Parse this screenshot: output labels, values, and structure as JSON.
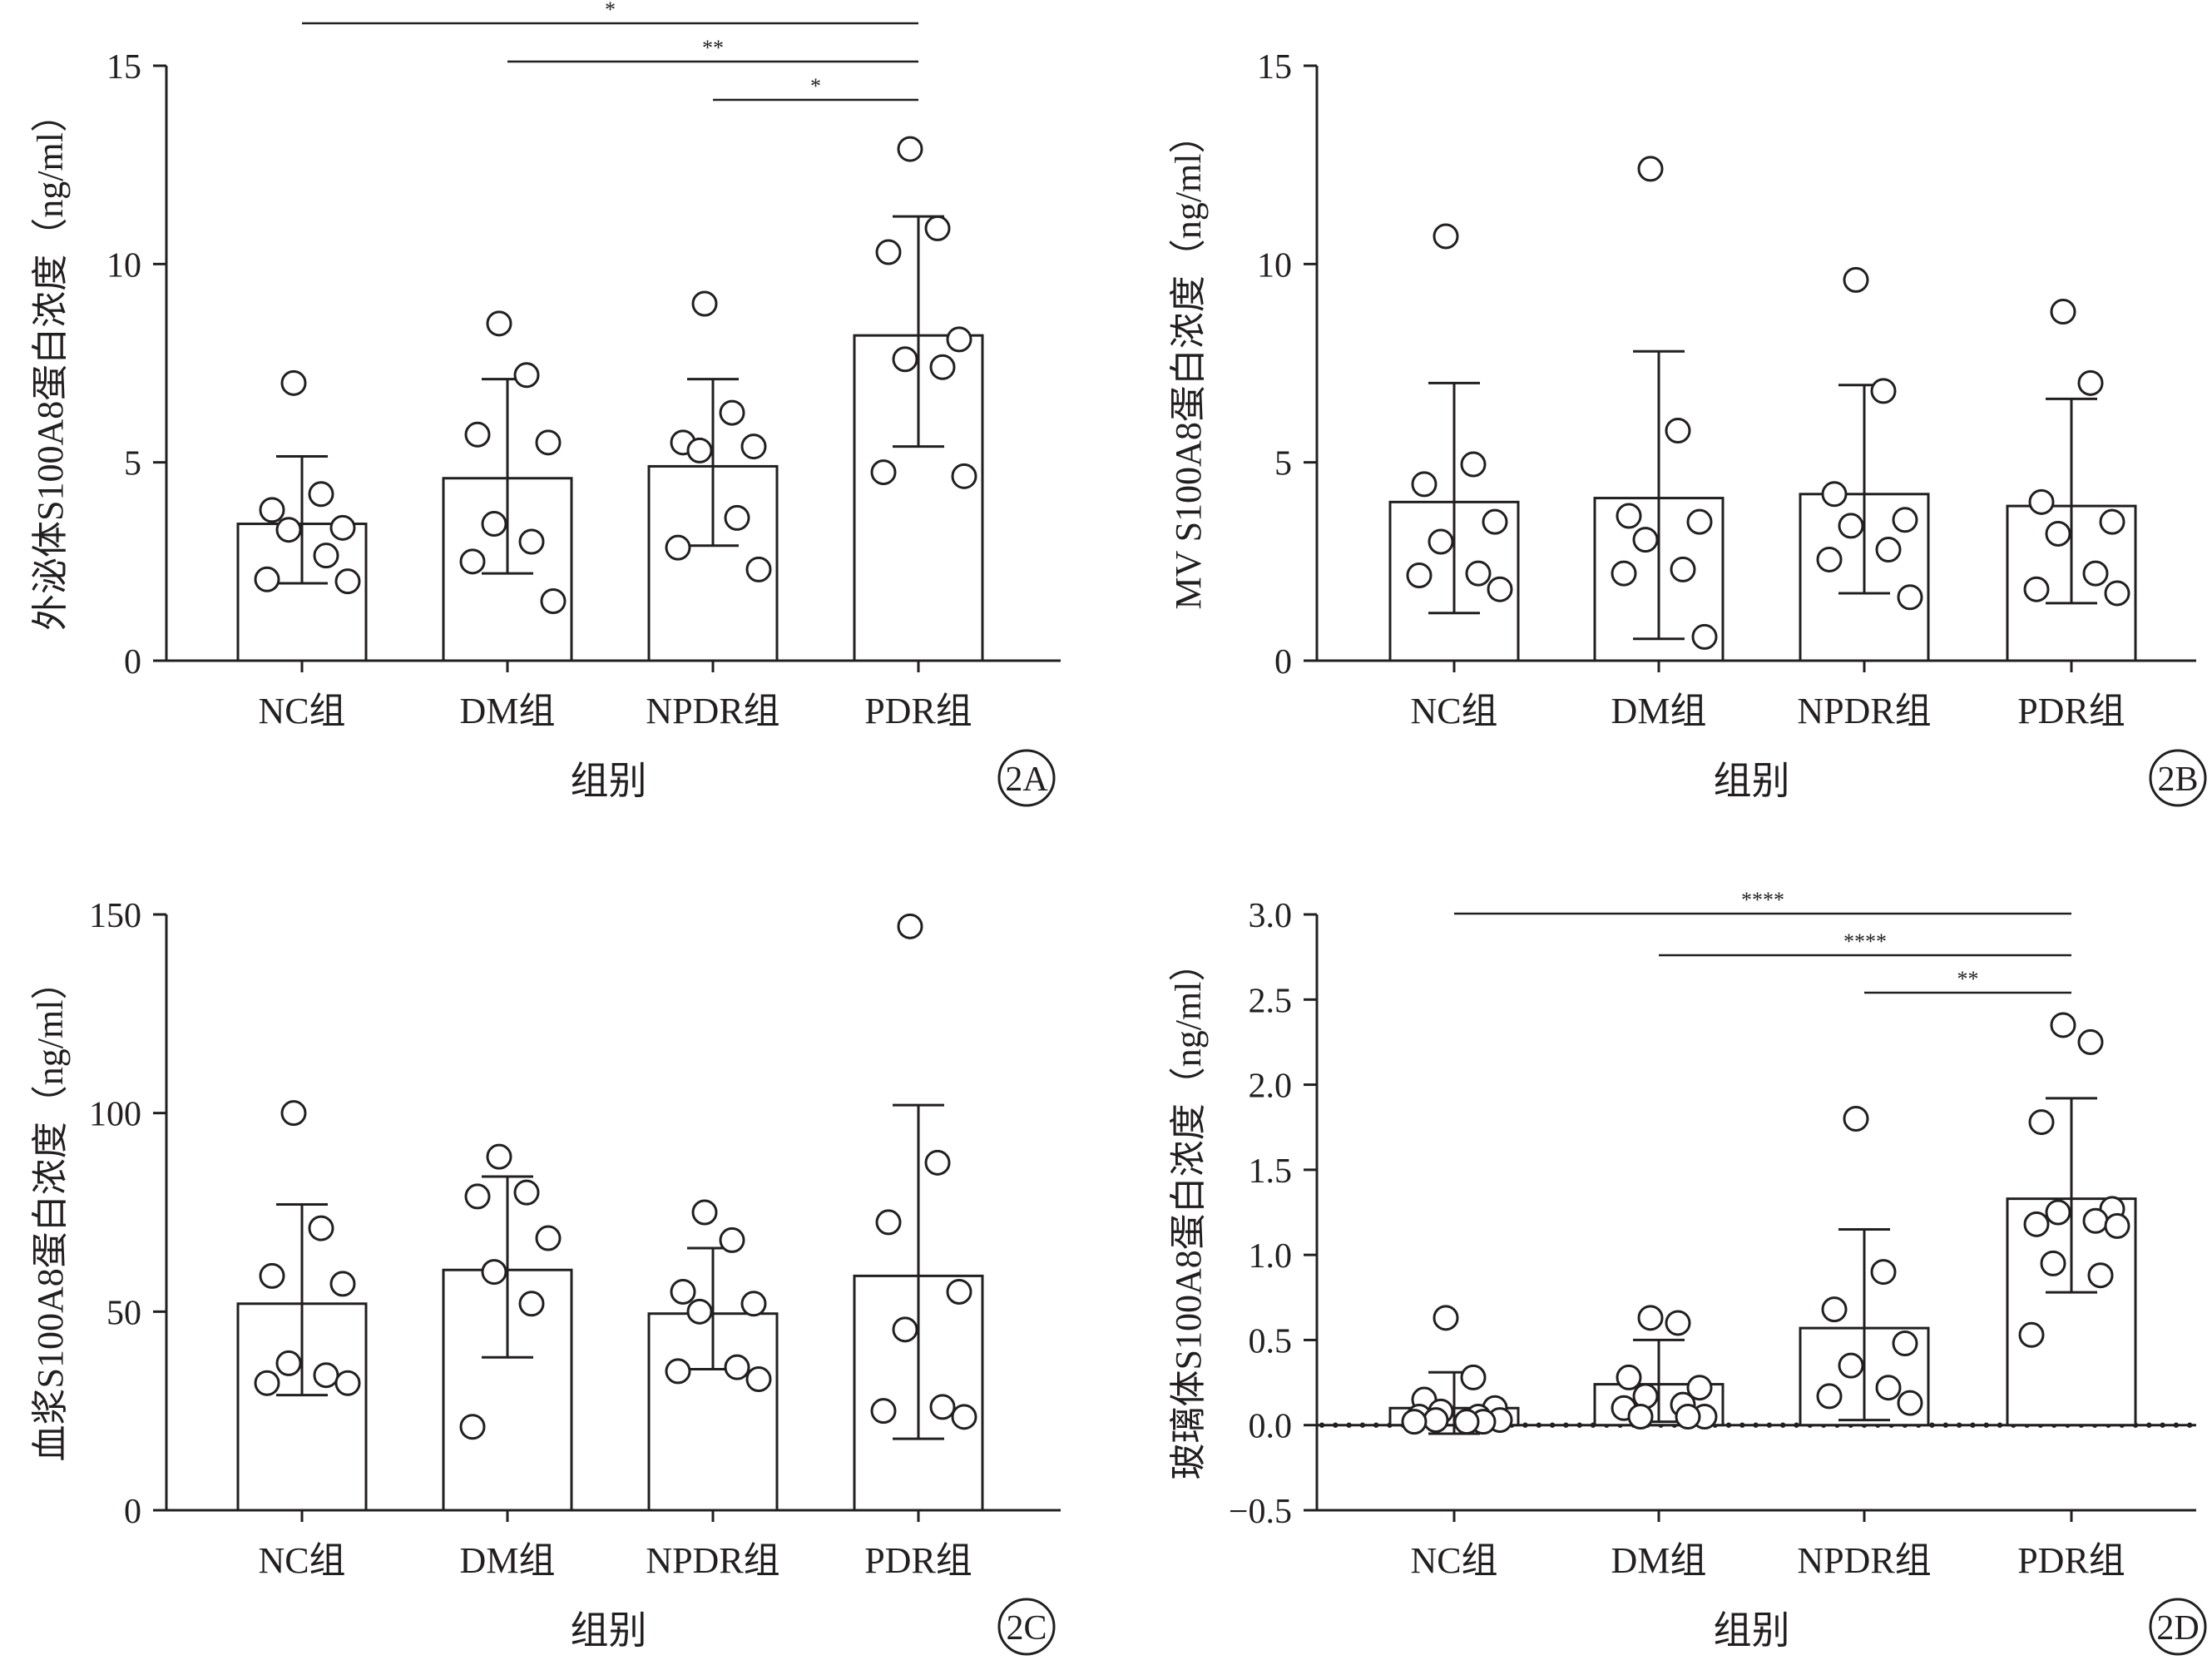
{
  "chart_data": [
    {
      "type": "bar",
      "panel_label": "2A",
      "categories": [
        "NC组",
        "DM组",
        "NPDR组",
        "PDR组"
      ],
      "ylabel": "外泌体S100A8蛋白浓度（ng/ml）",
      "xlabel": "组别",
      "ylim": [
        0,
        15
      ],
      "yticks": [
        0,
        5,
        10,
        15
      ],
      "ytick_labels": [
        "0",
        "5",
        "10",
        "15"
      ],
      "means": [
        3.45,
        4.6,
        4.9,
        8.2
      ],
      "sd_low": [
        1.95,
        2.2,
        2.9,
        5.4
      ],
      "sd_high": [
        5.15,
        7.1,
        7.1,
        11.2
      ],
      "points": [
        [
          7.0,
          4.2,
          3.8,
          3.35,
          3.3,
          2.65,
          2.05,
          2.0
        ],
        [
          8.5,
          7.2,
          5.7,
          5.5,
          3.45,
          3.0,
          2.5,
          1.5
        ],
        [
          9.0,
          6.25,
          5.5,
          5.4,
          5.3,
          3.6,
          2.85,
          2.3
        ],
        [
          12.9,
          10.9,
          10.3,
          8.1,
          7.6,
          7.4,
          4.75,
          4.65
        ]
      ],
      "significance": [
        {
          "from": "NC组",
          "to": "PDR组",
          "label": "*"
        },
        {
          "from": "DM组",
          "to": "PDR组",
          "label": "**"
        },
        {
          "from": "NPDR组",
          "to": "PDR组",
          "label": "*"
        }
      ],
      "dotted_zero_line": false
    },
    {
      "type": "bar",
      "panel_label": "2B",
      "categories": [
        "NC组",
        "DM组",
        "NPDR组",
        "PDR组"
      ],
      "ylabel": "MV S100A8蛋白浓度（ng/ml）",
      "xlabel": "组别",
      "ylim": [
        0,
        15
      ],
      "yticks": [
        0,
        5,
        10,
        15
      ],
      "ytick_labels": [
        "0",
        "5",
        "10",
        "15"
      ],
      "means": [
        4.0,
        4.1,
        4.2,
        3.9
      ],
      "sd_low": [
        1.2,
        0.55,
        1.7,
        1.45
      ],
      "sd_high": [
        7.0,
        7.8,
        6.95,
        6.6
      ],
      "points": [
        [
          10.7,
          4.95,
          4.45,
          3.5,
          3.0,
          2.2,
          2.15,
          1.8
        ],
        [
          12.4,
          5.8,
          3.65,
          3.5,
          3.05,
          2.3,
          2.2,
          0.6
        ],
        [
          9.6,
          6.8,
          4.2,
          3.55,
          3.4,
          2.8,
          2.55,
          1.6
        ],
        [
          8.8,
          7.0,
          4.0,
          3.5,
          3.2,
          2.2,
          1.8,
          1.7
        ]
      ],
      "significance": [],
      "dotted_zero_line": false
    },
    {
      "type": "bar",
      "panel_label": "2C",
      "categories": [
        "NC组",
        "DM组",
        "NPDR组",
        "PDR组"
      ],
      "ylabel": "血浆S100A8蛋白浓度（ng/ml）",
      "xlabel": "组别",
      "ylim": [
        0,
        150
      ],
      "yticks": [
        0,
        50,
        100,
        150
      ],
      "ytick_labels": [
        "0",
        "50",
        "100",
        "150"
      ],
      "means": [
        52,
        60.5,
        49.5,
        59
      ],
      "sd_low": [
        29,
        38.5,
        35.5,
        18
      ],
      "sd_high": [
        77,
        84,
        66,
        102
      ],
      "points": [
        [
          100,
          71,
          59,
          57,
          37,
          34,
          32,
          32
        ],
        [
          89,
          80,
          79,
          68.5,
          60,
          52,
          21
        ],
        [
          75,
          68,
          55,
          52,
          50,
          36,
          35,
          33
        ],
        [
          147,
          87.5,
          72.5,
          55,
          45.5,
          26,
          25,
          23.5
        ]
      ],
      "significance": [],
      "dotted_zero_line": false
    },
    {
      "type": "bar",
      "panel_label": "2D",
      "categories": [
        "NC组",
        "DM组",
        "NPDR组",
        "PDR组"
      ],
      "ylabel": "玻璃体S100A8蛋白浓度（ng/ml）",
      "xlabel": "组别",
      "ylim": [
        -0.5,
        3.0
      ],
      "yticks": [
        -0.5,
        0.0,
        0.5,
        1.0,
        1.5,
        2.0,
        2.5,
        3.0
      ],
      "ytick_labels": [
        "−0.5",
        "0.0",
        "0.5",
        "1.0",
        "1.5",
        "2.0",
        "2.5",
        "3.0"
      ],
      "means": [
        0.1,
        0.24,
        0.57,
        1.33
      ],
      "sd_low": [
        -0.05,
        0.02,
        0.03,
        0.78
      ],
      "sd_high": [
        0.31,
        0.5,
        1.15,
        1.92
      ],
      "points": [
        [
          0.63,
          0.28,
          0.15,
          0.1,
          0.08,
          0.05,
          0.05,
          0.03,
          0.03,
          0.02,
          0.02,
          0.02
        ],
        [
          0.63,
          0.6,
          0.28,
          0.22,
          0.17,
          0.12,
          0.1,
          0.05,
          0.05,
          0.05
        ],
        [
          1.8,
          0.9,
          0.68,
          0.48,
          0.35,
          0.22,
          0.17,
          0.13
        ],
        [
          2.35,
          2.25,
          1.78,
          1.27,
          1.25,
          1.2,
          1.18,
          1.17,
          0.95,
          0.88,
          0.53
        ]
      ],
      "significance": [
        {
          "from": "NC组",
          "to": "PDR组",
          "label": "****"
        },
        {
          "from": "DM组",
          "to": "PDR组",
          "label": "****"
        },
        {
          "from": "NPDR组",
          "to": "PDR组",
          "label": "**"
        }
      ],
      "dotted_zero_line": true
    }
  ]
}
